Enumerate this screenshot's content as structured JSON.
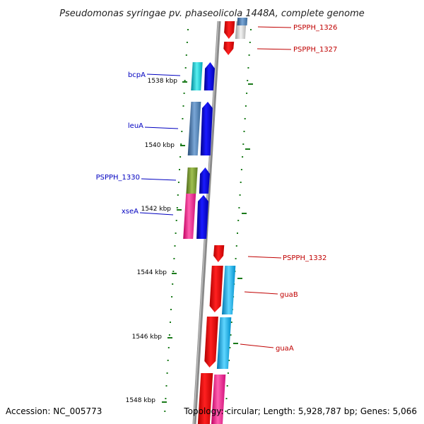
{
  "title": "Pseudomonas syringae pv. phaseolicola 1448A, complete genome",
  "footer": {
    "accession": "Accession: NC_005773",
    "topology": "Topology: circular; Length: 5,928,787 bp; Genes: 5,066"
  },
  "colors": {
    "backbone": "#808080",
    "tick": "#1a7a1a",
    "left_label": "#0000c0",
    "right_label": "#c00000"
  },
  "kbp_labels": [
    "1538 kbp",
    "1540 kbp",
    "1542 kbp",
    "1544 kbp",
    "1546 kbp",
    "1548 kbp"
  ],
  "left_labels": [
    "bcpA",
    "leuA",
    "PSPPH_1330",
    "xseA"
  ],
  "right_labels": [
    "PSPPH_1326",
    "PSPPH_1327",
    "PSPPH_1332",
    "guaB",
    "guaA"
  ]
}
